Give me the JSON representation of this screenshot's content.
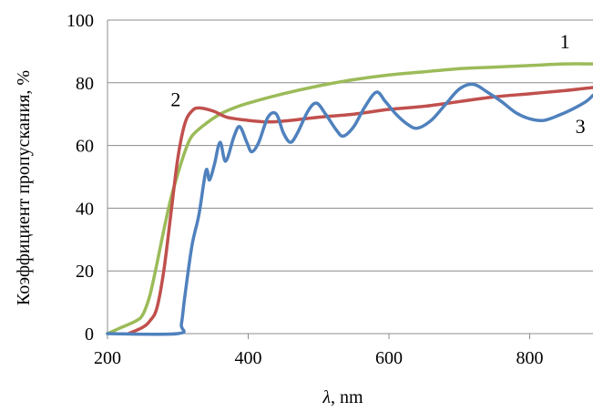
{
  "chart_data": {
    "type": "line",
    "title": "",
    "xlabel_symbol": "λ",
    "xlabel_unit": ", nm",
    "ylabel": "Коэффициент пропускания, %",
    "xlim": [
      200,
      890
    ],
    "ylim": [
      0,
      100
    ],
    "x_ticks": [
      200,
      400,
      600,
      800
    ],
    "y_ticks": [
      0,
      20,
      40,
      60,
      80,
      100
    ],
    "grid": "horizontal",
    "legend": "none",
    "series": [
      {
        "name": "1",
        "color": "#9bbb59",
        "label_at": [
          850,
          91
        ],
        "points": [
          [
            200,
            0
          ],
          [
            220,
            2
          ],
          [
            240,
            4
          ],
          [
            250,
            6
          ],
          [
            260,
            12
          ],
          [
            270,
            22
          ],
          [
            280,
            33
          ],
          [
            290,
            43
          ],
          [
            300,
            51
          ],
          [
            310,
            58
          ],
          [
            320,
            63
          ],
          [
            340,
            67
          ],
          [
            360,
            70
          ],
          [
            380,
            72
          ],
          [
            400,
            73.5
          ],
          [
            450,
            76.5
          ],
          [
            500,
            79
          ],
          [
            550,
            81
          ],
          [
            600,
            82.5
          ],
          [
            650,
            83.5
          ],
          [
            700,
            84.5
          ],
          [
            750,
            85
          ],
          [
            800,
            85.5
          ],
          [
            850,
            86
          ],
          [
            890,
            86
          ]
        ]
      },
      {
        "name": "2",
        "color": "#c0504d",
        "label_at": [
          297,
          72.5
        ],
        "points": [
          [
            230,
            0
          ],
          [
            250,
            2
          ],
          [
            260,
            4
          ],
          [
            270,
            8
          ],
          [
            280,
            20
          ],
          [
            290,
            38
          ],
          [
            300,
            56
          ],
          [
            310,
            67
          ],
          [
            320,
            71
          ],
          [
            330,
            72
          ],
          [
            350,
            71
          ],
          [
            370,
            69
          ],
          [
            400,
            68
          ],
          [
            430,
            67.5
          ],
          [
            460,
            68
          ],
          [
            500,
            69
          ],
          [
            550,
            70
          ],
          [
            600,
            71.5
          ],
          [
            650,
            72.5
          ],
          [
            700,
            74
          ],
          [
            750,
            75.5
          ],
          [
            800,
            76.5
          ],
          [
            850,
            77.5
          ],
          [
            890,
            78.5
          ]
        ]
      },
      {
        "name": "3",
        "color": "#4f81bd",
        "label_at": [
          872,
          64
        ],
        "points": [
          [
            200,
            0
          ],
          [
            300,
            0
          ],
          [
            305,
            3
          ],
          [
            310,
            12
          ],
          [
            320,
            28
          ],
          [
            330,
            38
          ],
          [
            340,
            52
          ],
          [
            345,
            49
          ],
          [
            352,
            54
          ],
          [
            360,
            61
          ],
          [
            368,
            55
          ],
          [
            380,
            63
          ],
          [
            388,
            66
          ],
          [
            398,
            61
          ],
          [
            405,
            58
          ],
          [
            415,
            61
          ],
          [
            428,
            69
          ],
          [
            440,
            70
          ],
          [
            450,
            64
          ],
          [
            460,
            61
          ],
          [
            470,
            64
          ],
          [
            485,
            71
          ],
          [
            497,
            73.5
          ],
          [
            510,
            70
          ],
          [
            525,
            65
          ],
          [
            535,
            63
          ],
          [
            550,
            66
          ],
          [
            565,
            72
          ],
          [
            582,
            77
          ],
          [
            595,
            74
          ],
          [
            610,
            70
          ],
          [
            625,
            67
          ],
          [
            640,
            65.5
          ],
          [
            660,
            68
          ],
          [
            680,
            73
          ],
          [
            700,
            78
          ],
          [
            720,
            79.5
          ],
          [
            740,
            77
          ],
          [
            760,
            74
          ],
          [
            780,
            70.5
          ],
          [
            800,
            68.5
          ],
          [
            820,
            68
          ],
          [
            840,
            69.5
          ],
          [
            860,
            71.5
          ],
          [
            880,
            74
          ],
          [
            890,
            76
          ]
        ]
      }
    ]
  }
}
